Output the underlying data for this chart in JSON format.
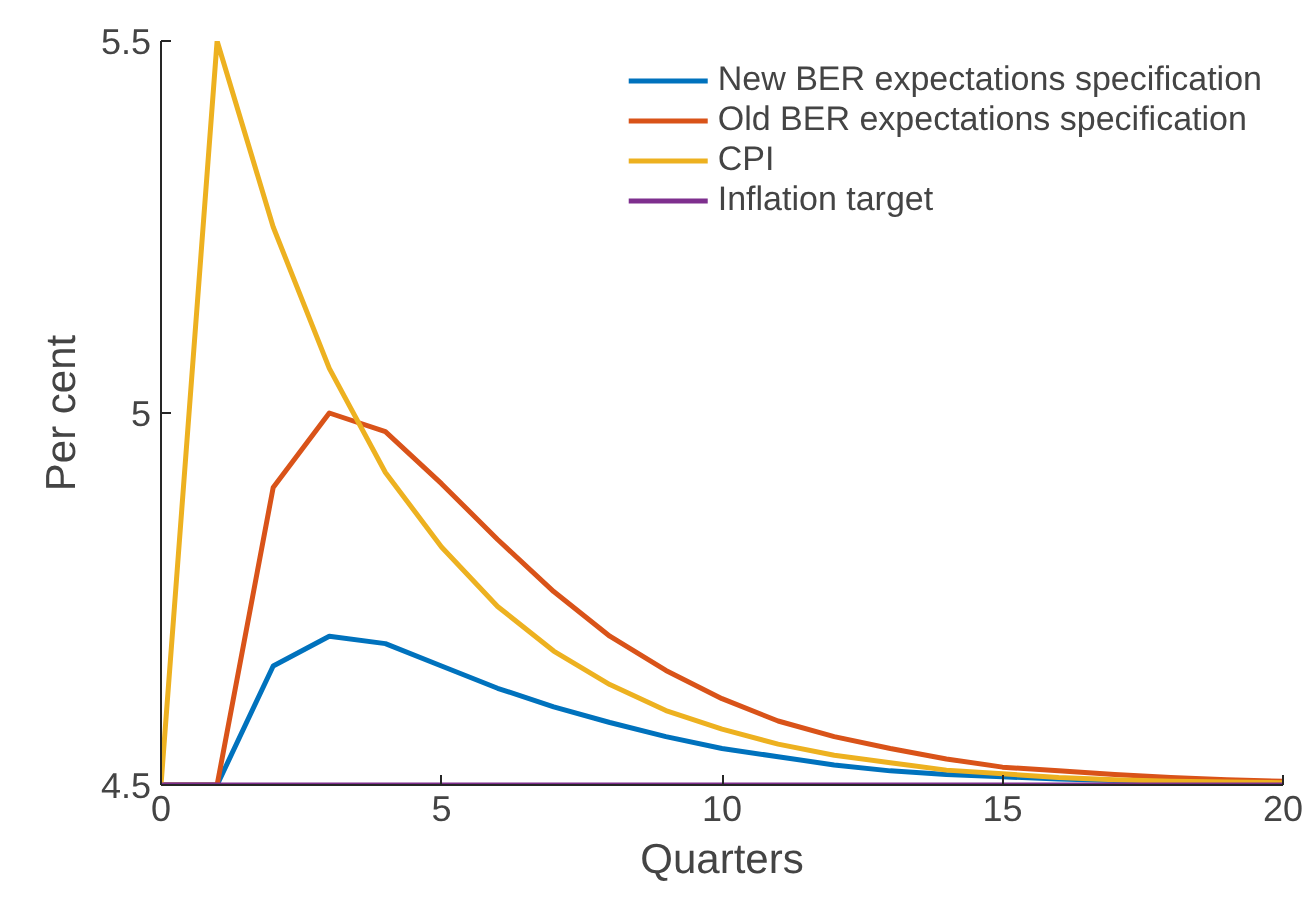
{
  "chart_data": {
    "type": "line",
    "xlabel": "Quarters",
    "ylabel": "Per cent",
    "x": [
      0,
      1,
      2,
      3,
      4,
      5,
      6,
      7,
      8,
      9,
      10,
      11,
      12,
      13,
      14,
      15,
      16,
      17,
      18,
      19,
      20
    ],
    "series": [
      {
        "name": "New BER expectations specification",
        "color": "#0072bd",
        "values": [
          4.5,
          4.5,
          4.66,
          4.7,
          4.69,
          4.66,
          4.63,
          4.605,
          4.584,
          4.565,
          4.549,
          4.538,
          4.527,
          4.519,
          4.514,
          4.511,
          4.508,
          4.506,
          4.505,
          null,
          null
        ]
      },
      {
        "name": "Old BER expectations specification",
        "color": "#d95319",
        "values": [
          4.5,
          4.5,
          4.9,
          5.0,
          4.975,
          4.905,
          4.83,
          4.76,
          4.7,
          4.654,
          4.616,
          4.586,
          4.565,
          4.549,
          4.535,
          4.524,
          4.519,
          4.514,
          4.51,
          4.507,
          4.505
        ]
      },
      {
        "name": "CPI",
        "color": "#edb120",
        "values": [
          4.5,
          5.5,
          5.25,
          5.06,
          4.92,
          4.82,
          4.74,
          4.68,
          4.635,
          4.6,
          4.575,
          4.555,
          4.54,
          4.53,
          4.52,
          4.515,
          4.51,
          4.507,
          4.505,
          4.504,
          4.503
        ]
      },
      {
        "name": "Inflation target",
        "color": "#7e2f8e",
        "values": [
          4.5,
          4.5,
          4.5,
          4.5,
          4.5,
          4.5,
          4.5,
          4.5,
          4.5,
          4.5,
          4.5,
          4.5,
          4.5,
          4.5,
          4.5,
          4.5,
          4.5,
          4.5,
          4.5,
          4.5,
          4.5
        ]
      }
    ],
    "xlim": [
      0,
      20
    ],
    "ylim": [
      4.5,
      5.5
    ],
    "xticks": [
      0,
      5,
      10,
      15,
      20
    ],
    "yticks": [
      4.5,
      5,
      5.5
    ],
    "grid": false,
    "legend": "top right",
    "line_style": "solid",
    "marker": "none"
  }
}
